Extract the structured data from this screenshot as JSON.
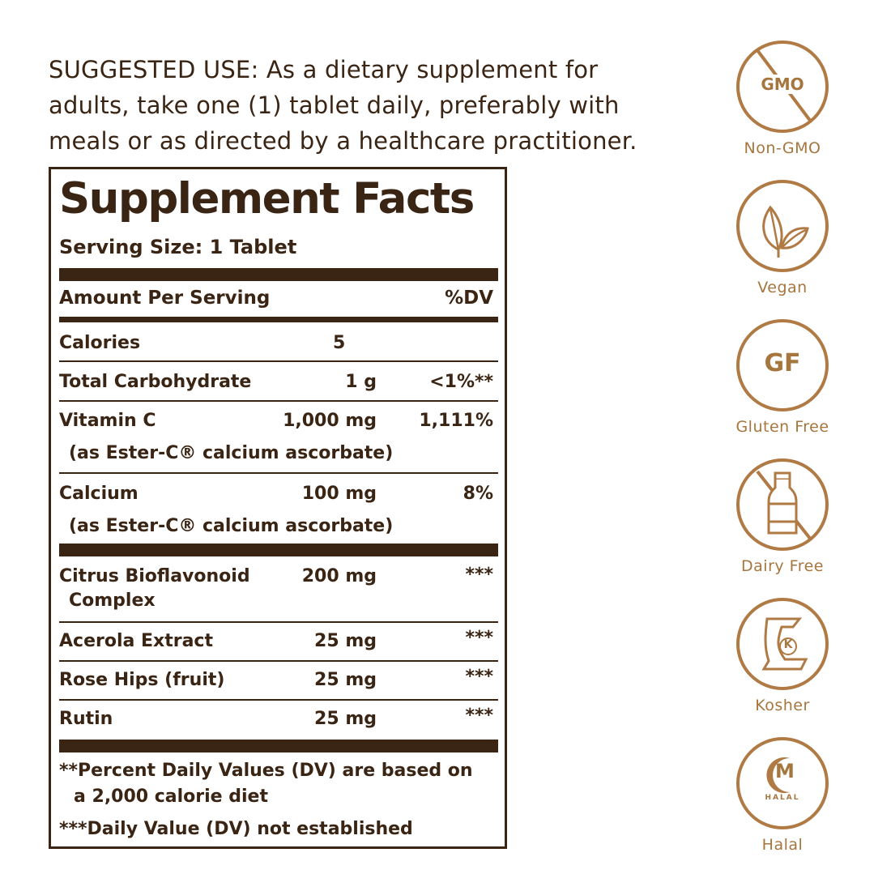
{
  "suggested_use": {
    "lines": [
      "SUGGESTED USE: As a dietary supplement for",
      "adults, take one (1) tablet daily, preferably with",
      "meals or as directed by a healthcare practitioner."
    ]
  },
  "facts": {
    "title": "Supplement Facts",
    "serving_size": "Serving Size: 1 Tablet",
    "header": {
      "amount": "Amount Per Serving",
      "dv": "%DV"
    },
    "rows": [
      {
        "name": "Calories",
        "amount": "5",
        "dv": ""
      },
      {
        "name": "Total Carbohydrate",
        "amount": "1 g",
        "dv": "<1%**"
      },
      {
        "name": "Vitamin C",
        "amount": "1,000 mg",
        "dv": "1,111%",
        "sub": "(as Ester-C® calcium ascorbate)"
      },
      {
        "name": "Calcium",
        "amount": "100 mg",
        "dv": "8%",
        "sub": "(as Ester-C® calcium ascorbate)"
      },
      {
        "name": "Citrus Bioflavonoid",
        "name2": "Complex",
        "amount": "200 mg",
        "dv": "***"
      },
      {
        "name": "Acerola Extract",
        "amount": "25 mg",
        "dv": "***"
      },
      {
        "name": "Rose Hips (fruit)",
        "amount": "25 mg",
        "dv": "***"
      },
      {
        "name": "Rutin",
        "amount": "25 mg",
        "dv": "***"
      }
    ],
    "footnotes": [
      "**Percent Daily Values (DV) are based on",
      "a 2,000 calorie diet",
      "***Daily Value (DV) not established"
    ]
  },
  "badges": [
    {
      "icon": "no-gmo-icon",
      "text": "GMO",
      "label": "Non-GMO"
    },
    {
      "icon": "leaf-icon",
      "label": "Vegan"
    },
    {
      "icon": "gluten-free-icon",
      "text": "GF",
      "label": "Gluten Free"
    },
    {
      "icon": "no-milk-bottle-icon",
      "label": "Dairy Free"
    },
    {
      "icon": "kosher-icon",
      "text": "K",
      "label": "Kosher"
    },
    {
      "icon": "halal-icon",
      "text": "M",
      "small": "HALAL",
      "label": "Halal"
    }
  ],
  "colors": {
    "text": "#3a2514",
    "badge": "#b07a45"
  }
}
